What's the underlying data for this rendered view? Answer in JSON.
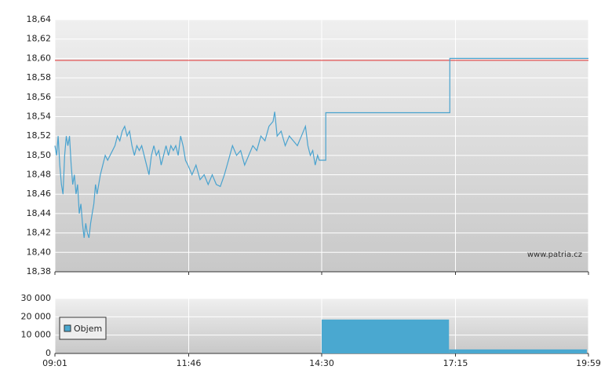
{
  "chart_data": [
    {
      "type": "line",
      "annotation": "www.patria.cz",
      "xlim": [
        541,
        1199
      ],
      "ylim": [
        18.38,
        18.64
      ],
      "yticks": [
        {
          "value": 18.38,
          "label": "18,38"
        },
        {
          "value": 18.4,
          "label": "18,40"
        },
        {
          "value": 18.42,
          "label": "18,42"
        },
        {
          "value": 18.44,
          "label": "18,44"
        },
        {
          "value": 18.46,
          "label": "18,46"
        },
        {
          "value": 18.48,
          "label": "18,48"
        },
        {
          "value": 18.5,
          "label": "18,50"
        },
        {
          "value": 18.52,
          "label": "18,52"
        },
        {
          "value": 18.54,
          "label": "18,54"
        },
        {
          "value": 18.56,
          "label": "18,56"
        },
        {
          "value": 18.58,
          "label": "18,58"
        },
        {
          "value": 18.6,
          "label": "18,60"
        },
        {
          "value": 18.62,
          "label": "18,62"
        },
        {
          "value": 18.64,
          "label": "18,64"
        }
      ],
      "grid": true,
      "reference_line": {
        "value": 18.598,
        "color": "#e03030"
      },
      "series": [
        {
          "color": "#4aa3cf",
          "x": [
            541,
            543,
            545,
            547,
            549,
            551,
            553,
            555,
            557,
            559,
            561,
            563,
            565,
            567,
            569,
            571,
            573,
            575,
            577,
            579,
            581,
            583,
            585,
            587,
            589,
            591,
            593,
            595,
            597,
            600,
            603,
            606,
            609,
            612,
            615,
            618,
            621,
            624,
            627,
            630,
            633,
            636,
            639,
            642,
            645,
            648,
            651,
            654,
            657,
            660,
            663,
            666,
            669,
            672,
            675,
            678,
            681,
            684,
            687,
            690,
            693,
            696,
            699,
            702,
            705,
            710,
            715,
            720,
            725,
            730,
            735,
            740,
            745,
            750,
            755,
            760,
            765,
            770,
            775,
            780,
            785,
            790,
            795,
            800,
            805,
            810,
            812,
            815,
            820,
            825,
            830,
            835,
            840,
            845,
            850,
            853,
            856,
            859,
            862,
            865,
            867,
            875,
            875,
            1028,
            1028,
            1199
          ],
          "values": [
            18.51,
            18.5,
            18.52,
            18.49,
            18.47,
            18.46,
            18.5,
            18.52,
            18.51,
            18.52,
            18.49,
            18.47,
            18.48,
            18.46,
            18.47,
            18.44,
            18.45,
            18.43,
            18.415,
            18.43,
            18.42,
            18.415,
            18.43,
            18.44,
            18.45,
            18.47,
            18.46,
            18.47,
            18.48,
            18.49,
            18.5,
            18.495,
            18.5,
            18.505,
            18.51,
            18.52,
            18.515,
            18.525,
            18.53,
            18.52,
            18.525,
            18.51,
            18.5,
            18.51,
            18.505,
            18.51,
            18.5,
            18.49,
            18.48,
            18.5,
            18.51,
            18.5,
            18.505,
            18.49,
            18.5,
            18.51,
            18.5,
            18.51,
            18.505,
            18.51,
            18.5,
            18.52,
            18.51,
            18.495,
            18.49,
            18.48,
            18.49,
            18.475,
            18.48,
            18.47,
            18.48,
            18.47,
            18.468,
            18.48,
            18.495,
            18.51,
            18.5,
            18.505,
            18.49,
            18.5,
            18.51,
            18.505,
            18.52,
            18.515,
            18.53,
            18.535,
            18.545,
            18.52,
            18.525,
            18.51,
            18.52,
            18.515,
            18.51,
            18.52,
            18.53,
            18.51,
            18.5,
            18.505,
            18.49,
            18.5,
            18.495,
            18.495,
            18.544,
            18.544,
            18.6,
            18.6
          ]
        }
      ]
    },
    {
      "type": "histogram",
      "xlim": [
        541,
        1199
      ],
      "ylim": [
        0,
        30000
      ],
      "xticks": [
        {
          "value": 541,
          "label": "09:01"
        },
        {
          "value": 706,
          "label": "11:46"
        },
        {
          "value": 870,
          "label": "14:30"
        },
        {
          "value": 1035,
          "label": "17:15"
        },
        {
          "value": 1199,
          "label": "19:59"
        }
      ],
      "yticks": [
        0,
        {
          "value": 10000,
          "label": "10 000"
        },
        {
          "value": 20000,
          "label": "20 000"
        },
        {
          "value": 30000,
          "label": "30 000"
        }
      ],
      "grid": true,
      "series": [
        {
          "name": "Objem",
          "color": "#4aa8d0",
          "bins": [
            870,
            1027,
            1197
          ],
          "values": [
            18500,
            2200
          ]
        }
      ]
    }
  ]
}
